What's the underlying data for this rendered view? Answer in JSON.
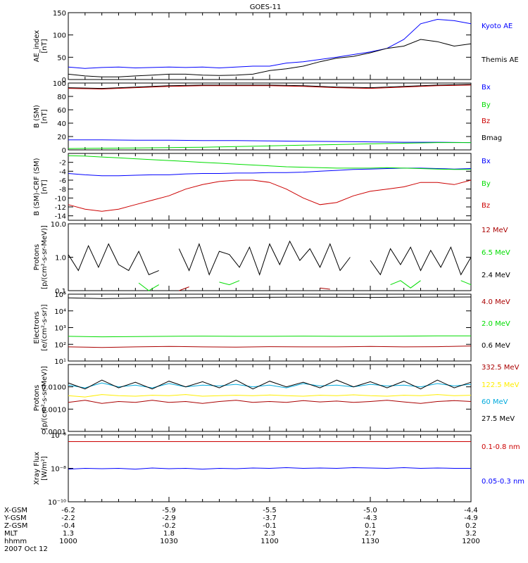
{
  "title": "GOES-11",
  "colors": {
    "blue": "#0000ff",
    "green": "#00dd00",
    "red": "#cc0000",
    "black": "#000000",
    "yellow": "#ffee00",
    "cyan": "#00aadd",
    "dred": "#aa0000"
  },
  "chart_data": [
    {
      "type": "line",
      "id": "ae",
      "ylabel": "AE_index",
      "yunit": "[nT]",
      "ylim": [
        0,
        150
      ],
      "yticks": [
        "0",
        "50",
        "100",
        "150"
      ],
      "ytick_values": [
        0,
        50,
        100,
        150
      ],
      "x": [
        1000,
        1005,
        1010,
        1015,
        1020,
        1025,
        1030,
        1035,
        1040,
        1045,
        1050,
        1055,
        1100,
        1105,
        1110,
        1115,
        1120,
        1125,
        1130,
        1135,
        1140,
        1145,
        1150,
        1155,
        1200
      ],
      "series": [
        {
          "name": "Kyoto AE",
          "color": "blue",
          "values": [
            28,
            25,
            27,
            28,
            26,
            27,
            28,
            27,
            28,
            26,
            28,
            30,
            30,
            37,
            40,
            45,
            50,
            56,
            62,
            70,
            90,
            125,
            135,
            132,
            125
          ]
        },
        {
          "name": "Themis AE",
          "color": "black",
          "values": [
            12,
            8,
            6,
            6,
            8,
            10,
            12,
            12,
            10,
            9,
            10,
            12,
            20,
            24,
            30,
            40,
            48,
            52,
            60,
            70,
            75,
            90,
            85,
            75,
            80
          ]
        }
      ]
    },
    {
      "type": "line",
      "id": "bsm",
      "ylabel": "B (SM)",
      "yunit": "[nT]",
      "ylim": [
        0,
        100
      ],
      "yticks": [
        "0",
        "20",
        "40",
        "60",
        "80",
        "100"
      ],
      "ytick_values": [
        0,
        20,
        40,
        60,
        80,
        100
      ],
      "x": [
        1000,
        1010,
        1020,
        1030,
        1040,
        1050,
        1100,
        1110,
        1120,
        1130,
        1140,
        1150,
        1200
      ],
      "series": [
        {
          "name": "Bx",
          "color": "blue",
          "values": [
            15,
            15,
            14.5,
            14.5,
            14,
            14,
            13.5,
            13,
            12.5,
            12,
            11.5,
            11.5,
            11
          ]
        },
        {
          "name": "By",
          "color": "green",
          "values": [
            2,
            2.5,
            3,
            3.5,
            4,
            5,
            6,
            7,
            8,
            9,
            10,
            11,
            11
          ]
        },
        {
          "name": "Bz",
          "color": "red",
          "values": [
            92,
            91,
            93,
            95,
            96,
            96,
            96,
            95,
            93,
            92,
            94,
            96,
            97
          ]
        },
        {
          "name": "Bmag",
          "color": "black",
          "values": [
            93,
            92,
            94,
            96,
            97,
            97,
            97,
            96,
            94,
            93,
            95,
            97,
            98
          ]
        }
      ]
    },
    {
      "type": "line",
      "id": "bsmd",
      "ylabel": "B (SM)-CRF (SM)",
      "yunit": "[nT]",
      "ylim": [
        -15,
        0
      ],
      "yticks": [
        "-14",
        "-12",
        "-10",
        "-8",
        "-6",
        "-4",
        "-2"
      ],
      "ytick_values": [
        -14,
        -12,
        -10,
        -8,
        -6,
        -4,
        -2
      ],
      "x": [
        1000,
        1005,
        1010,
        1015,
        1020,
        1025,
        1030,
        1035,
        1040,
        1045,
        1050,
        1055,
        1100,
        1105,
        1110,
        1115,
        1120,
        1125,
        1130,
        1135,
        1140,
        1145,
        1150,
        1155,
        1200
      ],
      "series": [
        {
          "name": "Bx",
          "color": "blue",
          "values": [
            -4.5,
            -4.8,
            -5,
            -5,
            -4.9,
            -4.8,
            -4.8,
            -4.6,
            -4.5,
            -4.5,
            -4.4,
            -4.4,
            -4.3,
            -4.3,
            -4.2,
            -4,
            -3.8,
            -3.6,
            -3.5,
            -3.4,
            -3.3,
            -3.3,
            -3.4,
            -3.5,
            -3.4
          ]
        },
        {
          "name": "By",
          "color": "green",
          "values": [
            -0.5,
            -0.6,
            -0.8,
            -1,
            -1.2,
            -1.4,
            -1.6,
            -1.8,
            -2,
            -2.2,
            -2.4,
            -2.6,
            -2.8,
            -3,
            -3.1,
            -3.2,
            -3.3,
            -3.3,
            -3.3,
            -3.2,
            -3.3,
            -3.4,
            -3.5,
            -3.6,
            -3.6
          ]
        },
        {
          "name": "Bz",
          "color": "red",
          "values": [
            -11.5,
            -12.5,
            -13,
            -12.5,
            -11.5,
            -10.5,
            -9.5,
            -8,
            -7,
            -6.3,
            -6,
            -6,
            -6.5,
            -8,
            -10,
            -11.5,
            -11,
            -9.5,
            -8.5,
            -8,
            -7.5,
            -6.5,
            -6.5,
            -7,
            -6
          ]
        }
      ]
    },
    {
      "type": "line",
      "id": "prot1",
      "ylabel": "Protons",
      "yunit": "[p/(cm²-s-sr-MeV)]",
      "yscale": "log",
      "ylim": [
        0.1,
        10
      ],
      "yticks": [
        "0.1",
        "1.0",
        "10.0"
      ],
      "ytick_values": [
        0.1,
        1,
        10
      ],
      "x": [
        1000,
        1003,
        1006,
        1009,
        1012,
        1015,
        1018,
        1021,
        1024,
        1027,
        1030,
        1033,
        1036,
        1039,
        1042,
        1045,
        1048,
        1051,
        1054,
        1057,
        1100,
        1103,
        1106,
        1109,
        1112,
        1115,
        1118,
        1121,
        1124,
        1127,
        1130,
        1133,
        1136,
        1139,
        1142,
        1145,
        1148,
        1151,
        1154,
        1157,
        1200
      ],
      "series": [
        {
          "name": "12 MeV",
          "color": "dred",
          "values": [
            null,
            null,
            null,
            null,
            null,
            null,
            null,
            null,
            null,
            null,
            null,
            0.1,
            0.13,
            null,
            null,
            null,
            null,
            null,
            null,
            null,
            null,
            null,
            null,
            null,
            null,
            0.12,
            0.11,
            null,
            null,
            null,
            null,
            null,
            null,
            null,
            null,
            0.12,
            null,
            null,
            null,
            0.11,
            null
          ]
        },
        {
          "name": "6.5 MeV",
          "color": "green",
          "values": [
            0.15,
            null,
            0.18,
            null,
            null,
            0.18,
            null,
            0.17,
            0.1,
            0.15,
            null,
            null,
            null,
            null,
            null,
            0.18,
            0.15,
            0.2,
            null,
            null,
            0.15,
            null,
            null,
            null,
            0.2,
            null,
            null,
            null,
            null,
            null,
            null,
            null,
            0.15,
            0.2,
            0.12,
            0.2,
            null,
            null,
            null,
            0.2,
            0.15
          ]
        },
        {
          "name": "2.4 MeV",
          "color": "black",
          "values": [
            1.2,
            0.4,
            2.2,
            0.5,
            2.5,
            0.6,
            0.4,
            1.5,
            0.3,
            0.4,
            null,
            1.8,
            0.4,
            2.5,
            0.3,
            1.5,
            1.2,
            0.5,
            2.0,
            0.3,
            2.5,
            0.6,
            3.0,
            0.8,
            1.8,
            0.5,
            2.5,
            0.4,
            1.0,
            null,
            0.8,
            0.3,
            1.8,
            0.6,
            2.0,
            0.4,
            1.6,
            0.5,
            2.0,
            0.3,
            1.0
          ]
        }
      ]
    },
    {
      "type": "line",
      "id": "elec",
      "ylabel": "Electrons",
      "yunit": "[e/(cm²-s-sr)]",
      "yscale": "log",
      "ylim": [
        10,
        100000
      ],
      "yticks": [
        "10¹",
        "10²",
        "10³",
        "10⁴",
        "10⁵"
      ],
      "ytick_values": [
        10,
        100,
        1000,
        10000,
        100000
      ],
      "x": [
        1000,
        1010,
        1020,
        1030,
        1040,
        1050,
        1100,
        1110,
        1120,
        1130,
        1140,
        1150,
        1200
      ],
      "series": [
        {
          "name": "4.0 MeV",
          "color": "dred",
          "values": [
            70,
            65,
            70,
            75,
            70,
            68,
            72,
            70,
            70,
            75,
            70,
            72,
            80
          ]
        },
        {
          "name": "2.0 MeV",
          "color": "green",
          "values": [
            300,
            280,
            290,
            300,
            310,
            300,
            300,
            310,
            300,
            300,
            310,
            320,
            320
          ]
        },
        {
          "name": "0.6 MeV",
          "color": "black",
          "values": [
            60000,
            55000,
            58000,
            60000,
            62000,
            63000,
            65000,
            66000,
            65000,
            64000,
            66000,
            67000,
            68000
          ]
        }
      ]
    },
    {
      "type": "line",
      "id": "prot2",
      "ylabel": "Protons",
      "yunit": "[p/(cm²-s-sr-MeV)]",
      "yscale": "log",
      "ylim": [
        0.0001,
        0.1
      ],
      "yticks": [
        "0.0001",
        "0.0010",
        "0.0100"
      ],
      "ytick_values": [
        0.0001,
        0.001,
        0.01
      ],
      "x": [
        1000,
        1005,
        1010,
        1015,
        1020,
        1025,
        1030,
        1035,
        1040,
        1045,
        1050,
        1055,
        1100,
        1105,
        1110,
        1115,
        1120,
        1125,
        1130,
        1135,
        1140,
        1145,
        1150,
        1155,
        1200
      ],
      "series": [
        {
          "name": "332.5 MeV",
          "color": "dred",
          "values": [
            0.002,
            0.0025,
            0.0018,
            0.0022,
            0.002,
            0.0025,
            0.002,
            0.0022,
            0.0018,
            0.0022,
            0.0025,
            0.002,
            0.0022,
            0.002,
            0.0024,
            0.0021,
            0.0023,
            0.002,
            0.0022,
            0.0025,
            0.0021,
            0.0018,
            0.0022,
            0.0024,
            0.0022
          ]
        },
        {
          "name": "122.5 MeV",
          "color": "yellow",
          "values": [
            0.004,
            0.0035,
            0.0045,
            0.004,
            0.0038,
            0.0042,
            0.004,
            0.0045,
            0.0038,
            0.004,
            0.0042,
            0.004,
            0.0043,
            0.004,
            0.0038,
            0.0042,
            0.004,
            0.0044,
            0.004,
            0.0038,
            0.0042,
            0.004,
            0.0045,
            0.004,
            0.0042
          ]
        },
        {
          "name": "60 MeV",
          "color": "cyan",
          "values": [
            0.012,
            0.009,
            0.015,
            0.01,
            0.012,
            0.009,
            0.014,
            0.01,
            0.012,
            0.011,
            0.013,
            0.01,
            0.012,
            0.009,
            0.014,
            0.011,
            0.012,
            0.01,
            0.013,
            0.011,
            0.012,
            0.01,
            0.014,
            0.011,
            0.013
          ]
        },
        {
          "name": "27.5 MeV",
          "color": "black",
          "values": [
            0.015,
            0.008,
            0.02,
            0.009,
            0.016,
            0.008,
            0.018,
            0.01,
            0.017,
            0.009,
            0.02,
            0.008,
            0.018,
            0.01,
            0.016,
            0.009,
            0.02,
            0.01,
            0.017,
            0.009,
            0.018,
            0.008,
            0.02,
            0.009,
            0.016
          ]
        }
      ]
    },
    {
      "type": "line",
      "id": "xray",
      "ylabel": "Xray Flux",
      "yunit": "[W/m²]",
      "yscale": "log",
      "ylim": [
        1e-10,
        1e-06
      ],
      "yticks": [
        "10⁻¹⁰",
        "10⁻⁸",
        "10⁻⁶"
      ],
      "ytick_values": [
        1e-10,
        1e-08,
        1e-06
      ],
      "x": [
        1000,
        1005,
        1010,
        1015,
        1020,
        1025,
        1030,
        1035,
        1040,
        1045,
        1050,
        1055,
        1100,
        1105,
        1110,
        1115,
        1120,
        1125,
        1130,
        1135,
        1140,
        1145,
        1150,
        1155,
        1200
      ],
      "series": [
        {
          "name": "0.1-0.8 nm",
          "color": "red",
          "values": [
            4e-07,
            4e-07,
            4e-07,
            4e-07,
            4e-07,
            4e-07,
            4e-07,
            4e-07,
            4e-07,
            4e-07,
            4e-07,
            4e-07,
            4e-07,
            4e-07,
            4e-07,
            4e-07,
            4e-07,
            4e-07,
            4e-07,
            4e-07,
            4e-07,
            4e-07,
            4e-07,
            4e-07,
            4e-07
          ]
        },
        {
          "name": "0.05-0.3 nm",
          "color": "blue",
          "values": [
            9e-09,
            1e-08,
            9.5e-09,
            1e-08,
            9e-09,
            1.05e-08,
            9.5e-09,
            1e-08,
            9e-09,
            1e-08,
            9.5e-09,
            1.05e-08,
            1e-08,
            1.1e-08,
            1e-08,
            1.05e-08,
            1e-08,
            1.1e-08,
            1.05e-08,
            1e-08,
            1.1e-08,
            1e-08,
            1.05e-08,
            1e-08,
            1e-08
          ]
        }
      ]
    }
  ],
  "footer": {
    "rows": [
      {
        "label": "X-GSM",
        "values": [
          "-6.2",
          "-5.9",
          "-5.5",
          "-5.0",
          "-4.4"
        ]
      },
      {
        "label": "Y-GSM",
        "values": [
          "-2.2",
          "-2.9",
          "-3.7",
          "-4.3",
          "-4.9"
        ]
      },
      {
        "label": "Z-GSM",
        "values": [
          "-0.4",
          "-0.2",
          "-0.1",
          "0.1",
          "0.2"
        ]
      },
      {
        "label": "MLT",
        "values": [
          "1.3",
          "1.8",
          "2.3",
          "2.7",
          "3.2"
        ]
      },
      {
        "label": "hhmm",
        "values": [
          "1000",
          "1030",
          "1100",
          "1130",
          "1200"
        ]
      }
    ],
    "date": "2007 Oct 12"
  }
}
